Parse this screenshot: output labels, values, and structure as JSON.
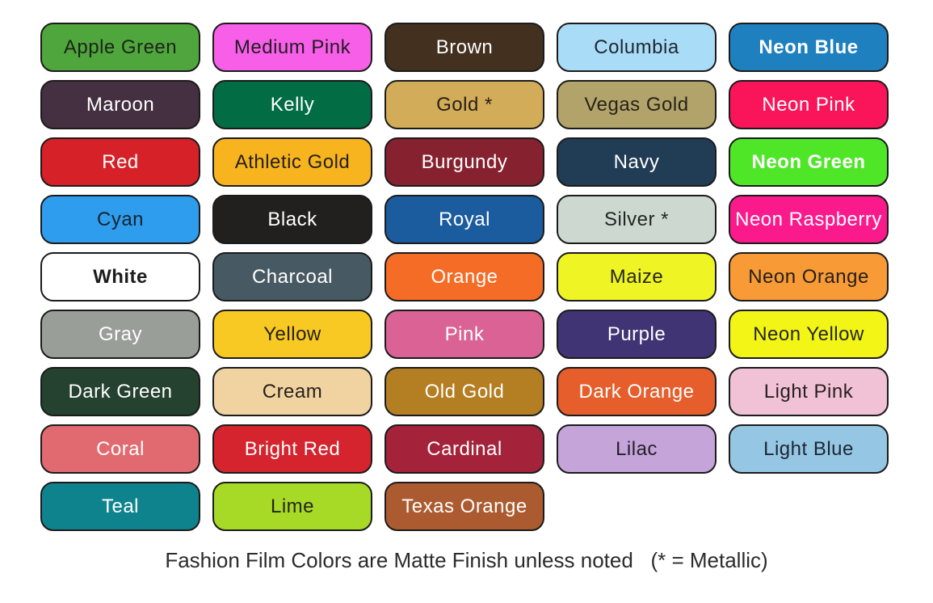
{
  "page": {
    "background": "#ffffff",
    "footer_note": "Fashion Film Colors are Matte Finish unless noted   (* = Metallic)"
  },
  "palette": {
    "columns": 5,
    "border_color": "#1b1b1b",
    "finish": "Matte",
    "metallic_marker": "*",
    "swatches": [
      {
        "label": "Apple Green",
        "color": "#4fa63c",
        "text_color": "#1c241a"
      },
      {
        "label": "Medium Pink",
        "color": "#f75fe8",
        "text_color": "#241a22"
      },
      {
        "label": "Brown",
        "color": "#43301f",
        "text_color": "#ffffff"
      },
      {
        "label": "Columbia",
        "color": "#a9dcf7",
        "text_color": "#1d2730"
      },
      {
        "label": "Neon Blue",
        "color": "#1f80c0",
        "text_color": "#ffffff",
        "bold": true
      },
      {
        "label": "Maroon",
        "color": "#443040",
        "text_color": "#ffffff"
      },
      {
        "label": "Kelly",
        "color": "#026c45",
        "text_color": "#ffffff"
      },
      {
        "label": "Gold *",
        "color": "#d3ac59",
        "text_color": "#262017"
      },
      {
        "label": "Vegas Gold",
        "color": "#b1a369",
        "text_color": "#26231a"
      },
      {
        "label": "Neon Pink",
        "color": "#fa1459",
        "text_color": "#ffffff"
      },
      {
        "label": "Red",
        "color": "#d52127",
        "text_color": "#ffffff"
      },
      {
        "label": "Athletic Gold",
        "color": "#f7b41f",
        "text_color": "#262015"
      },
      {
        "label": "Burgundy",
        "color": "#86212f",
        "text_color": "#ffffff"
      },
      {
        "label": "Navy",
        "color": "#213c55",
        "text_color": "#ffffff"
      },
      {
        "label": "Neon Green",
        "color": "#4fe628",
        "text_color": "#ffffff",
        "bold": true
      },
      {
        "label": "Cyan",
        "color": "#2f9ded",
        "text_color": "#16232e"
      },
      {
        "label": "Black",
        "color": "#221f1f",
        "text_color": "#ffffff"
      },
      {
        "label": "Royal",
        "color": "#1b5c9e",
        "text_color": "#ffffff"
      },
      {
        "label": "Silver *",
        "color": "#ccd8d0",
        "text_color": "#222724"
      },
      {
        "label": "Neon Raspberry",
        "color": "#fa1a8c",
        "text_color": "#ffffff"
      },
      {
        "label": "White",
        "color": "#ffffff",
        "text_color": "#1d1d1d",
        "bold": true
      },
      {
        "label": "Charcoal",
        "color": "#475a64",
        "text_color": "#ffffff"
      },
      {
        "label": "Orange",
        "color": "#f46c25",
        "text_color": "#ffffff"
      },
      {
        "label": "Maize",
        "color": "#eff425",
        "text_color": "#25261a"
      },
      {
        "label": "Neon Orange",
        "color": "#f89a35",
        "text_color": "#26201a"
      },
      {
        "label": "Gray",
        "color": "#9a9e99",
        "text_color": "#ffffff"
      },
      {
        "label": "Yellow",
        "color": "#f8c922",
        "text_color": "#262015"
      },
      {
        "label": "Pink",
        "color": "#db6295",
        "text_color": "#ffffff"
      },
      {
        "label": "Purple",
        "color": "#413474",
        "text_color": "#ffffff"
      },
      {
        "label": "Neon Yellow",
        "color": "#f2f516",
        "text_color": "#25261a"
      },
      {
        "label": "Dark Green",
        "color": "#25412f",
        "text_color": "#ffffff"
      },
      {
        "label": "Cream",
        "color": "#f0d3a1",
        "text_color": "#27221a"
      },
      {
        "label": "Old Gold",
        "color": "#b47e22",
        "text_color": "#ffffff"
      },
      {
        "label": "Dark Orange",
        "color": "#e55e2b",
        "text_color": "#ffffff"
      },
      {
        "label": "Light Pink",
        "color": "#f1c1d5",
        "text_color": "#272022"
      },
      {
        "label": "Coral",
        "color": "#e16a70",
        "text_color": "#ffffff"
      },
      {
        "label": "Bright Red",
        "color": "#d5242e",
        "text_color": "#ffffff"
      },
      {
        "label": "Cardinal",
        "color": "#a4223a",
        "text_color": "#ffffff"
      },
      {
        "label": "Lilac",
        "color": "#c5a4d9",
        "text_color": "#241f28"
      },
      {
        "label": "Light Blue",
        "color": "#95c7e5",
        "text_color": "#1c2630"
      },
      {
        "label": "Teal",
        "color": "#0e838d",
        "text_color": "#ffffff"
      },
      {
        "label": "Lime",
        "color": "#a7d927",
        "text_color": "#232614"
      },
      {
        "label": "Texas Orange",
        "color": "#ab5b2f",
        "text_color": "#ffffff"
      }
    ]
  }
}
